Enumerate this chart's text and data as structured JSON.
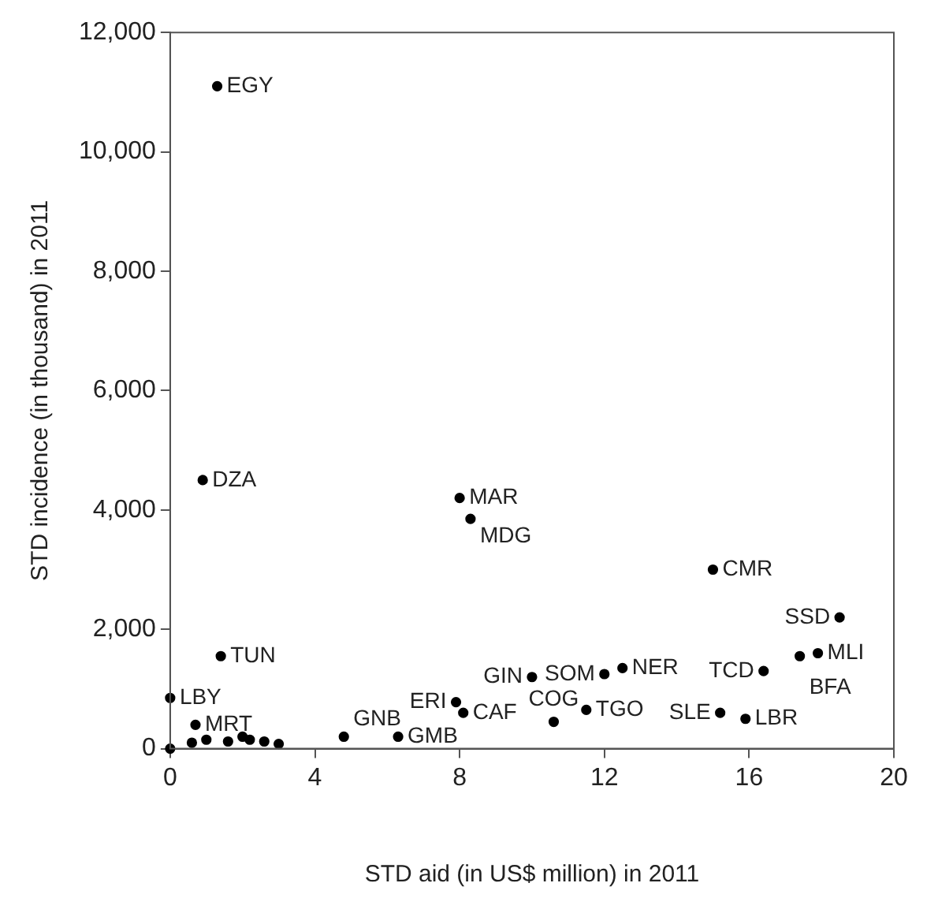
{
  "chart_data": {
    "type": "scatter",
    "xlabel": "STD aid (in US$ million) in 2011",
    "ylabel": "STD incidence (in thousand) in 2011",
    "x": [
      1.3,
      0.9,
      8.0,
      8.3,
      15.0,
      18.5,
      17.9,
      17.4,
      16.4,
      1.4,
      0,
      12.5,
      12.0,
      10.0,
      7.9,
      8.1,
      11.5,
      10.6,
      15.2,
      15.9,
      0.7,
      4.8,
      6.3,
      0,
      0.6,
      1.0,
      1.6,
      2.0,
      2.2,
      2.6,
      3.0
    ],
    "values": [
      11100,
      4500,
      4200,
      3850,
      3000,
      2200,
      1600,
      1550,
      1300,
      1550,
      850,
      1350,
      1250,
      1200,
      780,
      600,
      650,
      450,
      600,
      500,
      400,
      200,
      200,
      0,
      100,
      150,
      120,
      200,
      150,
      120,
      80
    ],
    "color": "#000000",
    "marker": "circle",
    "grid": false,
    "legend": false,
    "xlim": [
      0,
      20
    ],
    "xticks": [
      0,
      4,
      8,
      12,
      16,
      20
    ],
    "ylim": [
      0,
      12000
    ],
    "yticks": [
      0,
      {
        "value": 2000,
        "label": "2,000"
      },
      {
        "value": 4000,
        "label": "4,000"
      },
      {
        "value": 6000,
        "label": "6,000"
      },
      {
        "value": 8000,
        "label": "8,000"
      },
      {
        "value": 10000,
        "label": "10,000"
      },
      {
        "value": 12000,
        "label": "12,000"
      }
    ],
    "annotations": [
      {
        "text": "EGY",
        "x": 1.3,
        "y": 11100
      },
      {
        "text": "DZA",
        "x": 0.9,
        "y": 4500
      },
      {
        "text": "MAR",
        "x": 8.0,
        "y": 4200
      },
      {
        "text": "MDG",
        "x": 8.3,
        "y": 3850
      },
      {
        "text": "CMR",
        "x": 15.0,
        "y": 3000
      },
      {
        "text": "SSD",
        "x": 18.5,
        "y": 2200
      },
      {
        "text": "MLI",
        "x": 17.9,
        "y": 1600
      },
      {
        "text": "BFA",
        "x": 17.4,
        "y": 1550
      },
      {
        "text": "TCD",
        "x": 16.4,
        "y": 1300
      },
      {
        "text": "TUN",
        "x": 1.4,
        "y": 1550
      },
      {
        "text": "LBY",
        "x": 0,
        "y": 850
      },
      {
        "text": "NER",
        "x": 12.5,
        "y": 1350
      },
      {
        "text": "SOM",
        "x": 12.0,
        "y": 1250
      },
      {
        "text": "GIN",
        "x": 10.0,
        "y": 1200
      },
      {
        "text": "ERI",
        "x": 7.9,
        "y": 780
      },
      {
        "text": "CAF",
        "x": 8.1,
        "y": 600
      },
      {
        "text": "TGO",
        "x": 11.5,
        "y": 650
      },
      {
        "text": "COG",
        "x": 10.6,
        "y": 450
      },
      {
        "text": "SLE",
        "x": 15.2,
        "y": 600
      },
      {
        "text": "LBR",
        "x": 15.9,
        "y": 500
      },
      {
        "text": "MRT",
        "x": 0.7,
        "y": 400
      },
      {
        "text": "GNB",
        "x": 4.8,
        "y": 200
      },
      {
        "text": "GMB",
        "x": 6.3,
        "y": 200
      }
    ]
  }
}
